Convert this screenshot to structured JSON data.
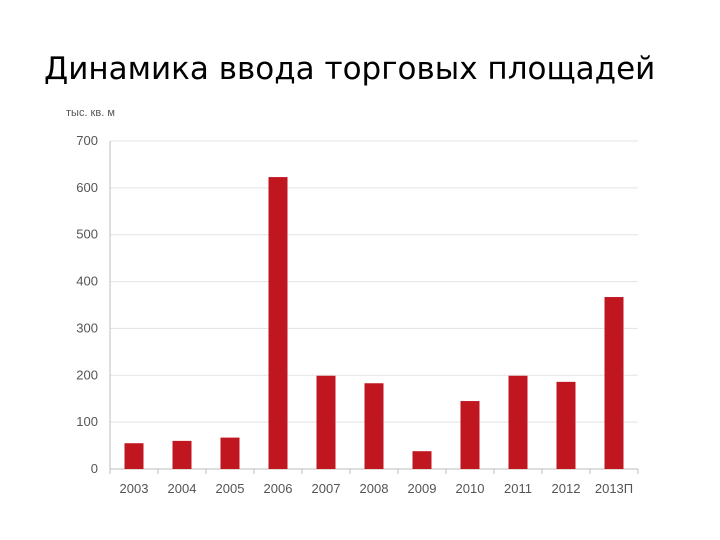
{
  "slide": {
    "title": "Динамика ввода торговых площадей"
  },
  "chart_data": {
    "type": "bar",
    "title": "Динамика ввода торговых площадей",
    "ylabel": "тыс. кв. м",
    "xlabel": "",
    "categories": [
      "2003",
      "2004",
      "2005",
      "2006",
      "2007",
      "2008",
      "2009",
      "2010",
      "2011",
      "2012",
      "2013П"
    ],
    "values": [
      55,
      60,
      67,
      623,
      199,
      183,
      38,
      145,
      199,
      186,
      367
    ],
    "ylim": [
      0,
      700
    ],
    "yticks": [
      0,
      100,
      200,
      300,
      400,
      500,
      600,
      700
    ],
    "grid": true,
    "legend": "none",
    "bar_color": "#c0161f",
    "grid_color": "#e3e3e3",
    "axis_color": "#bdbdbd"
  }
}
